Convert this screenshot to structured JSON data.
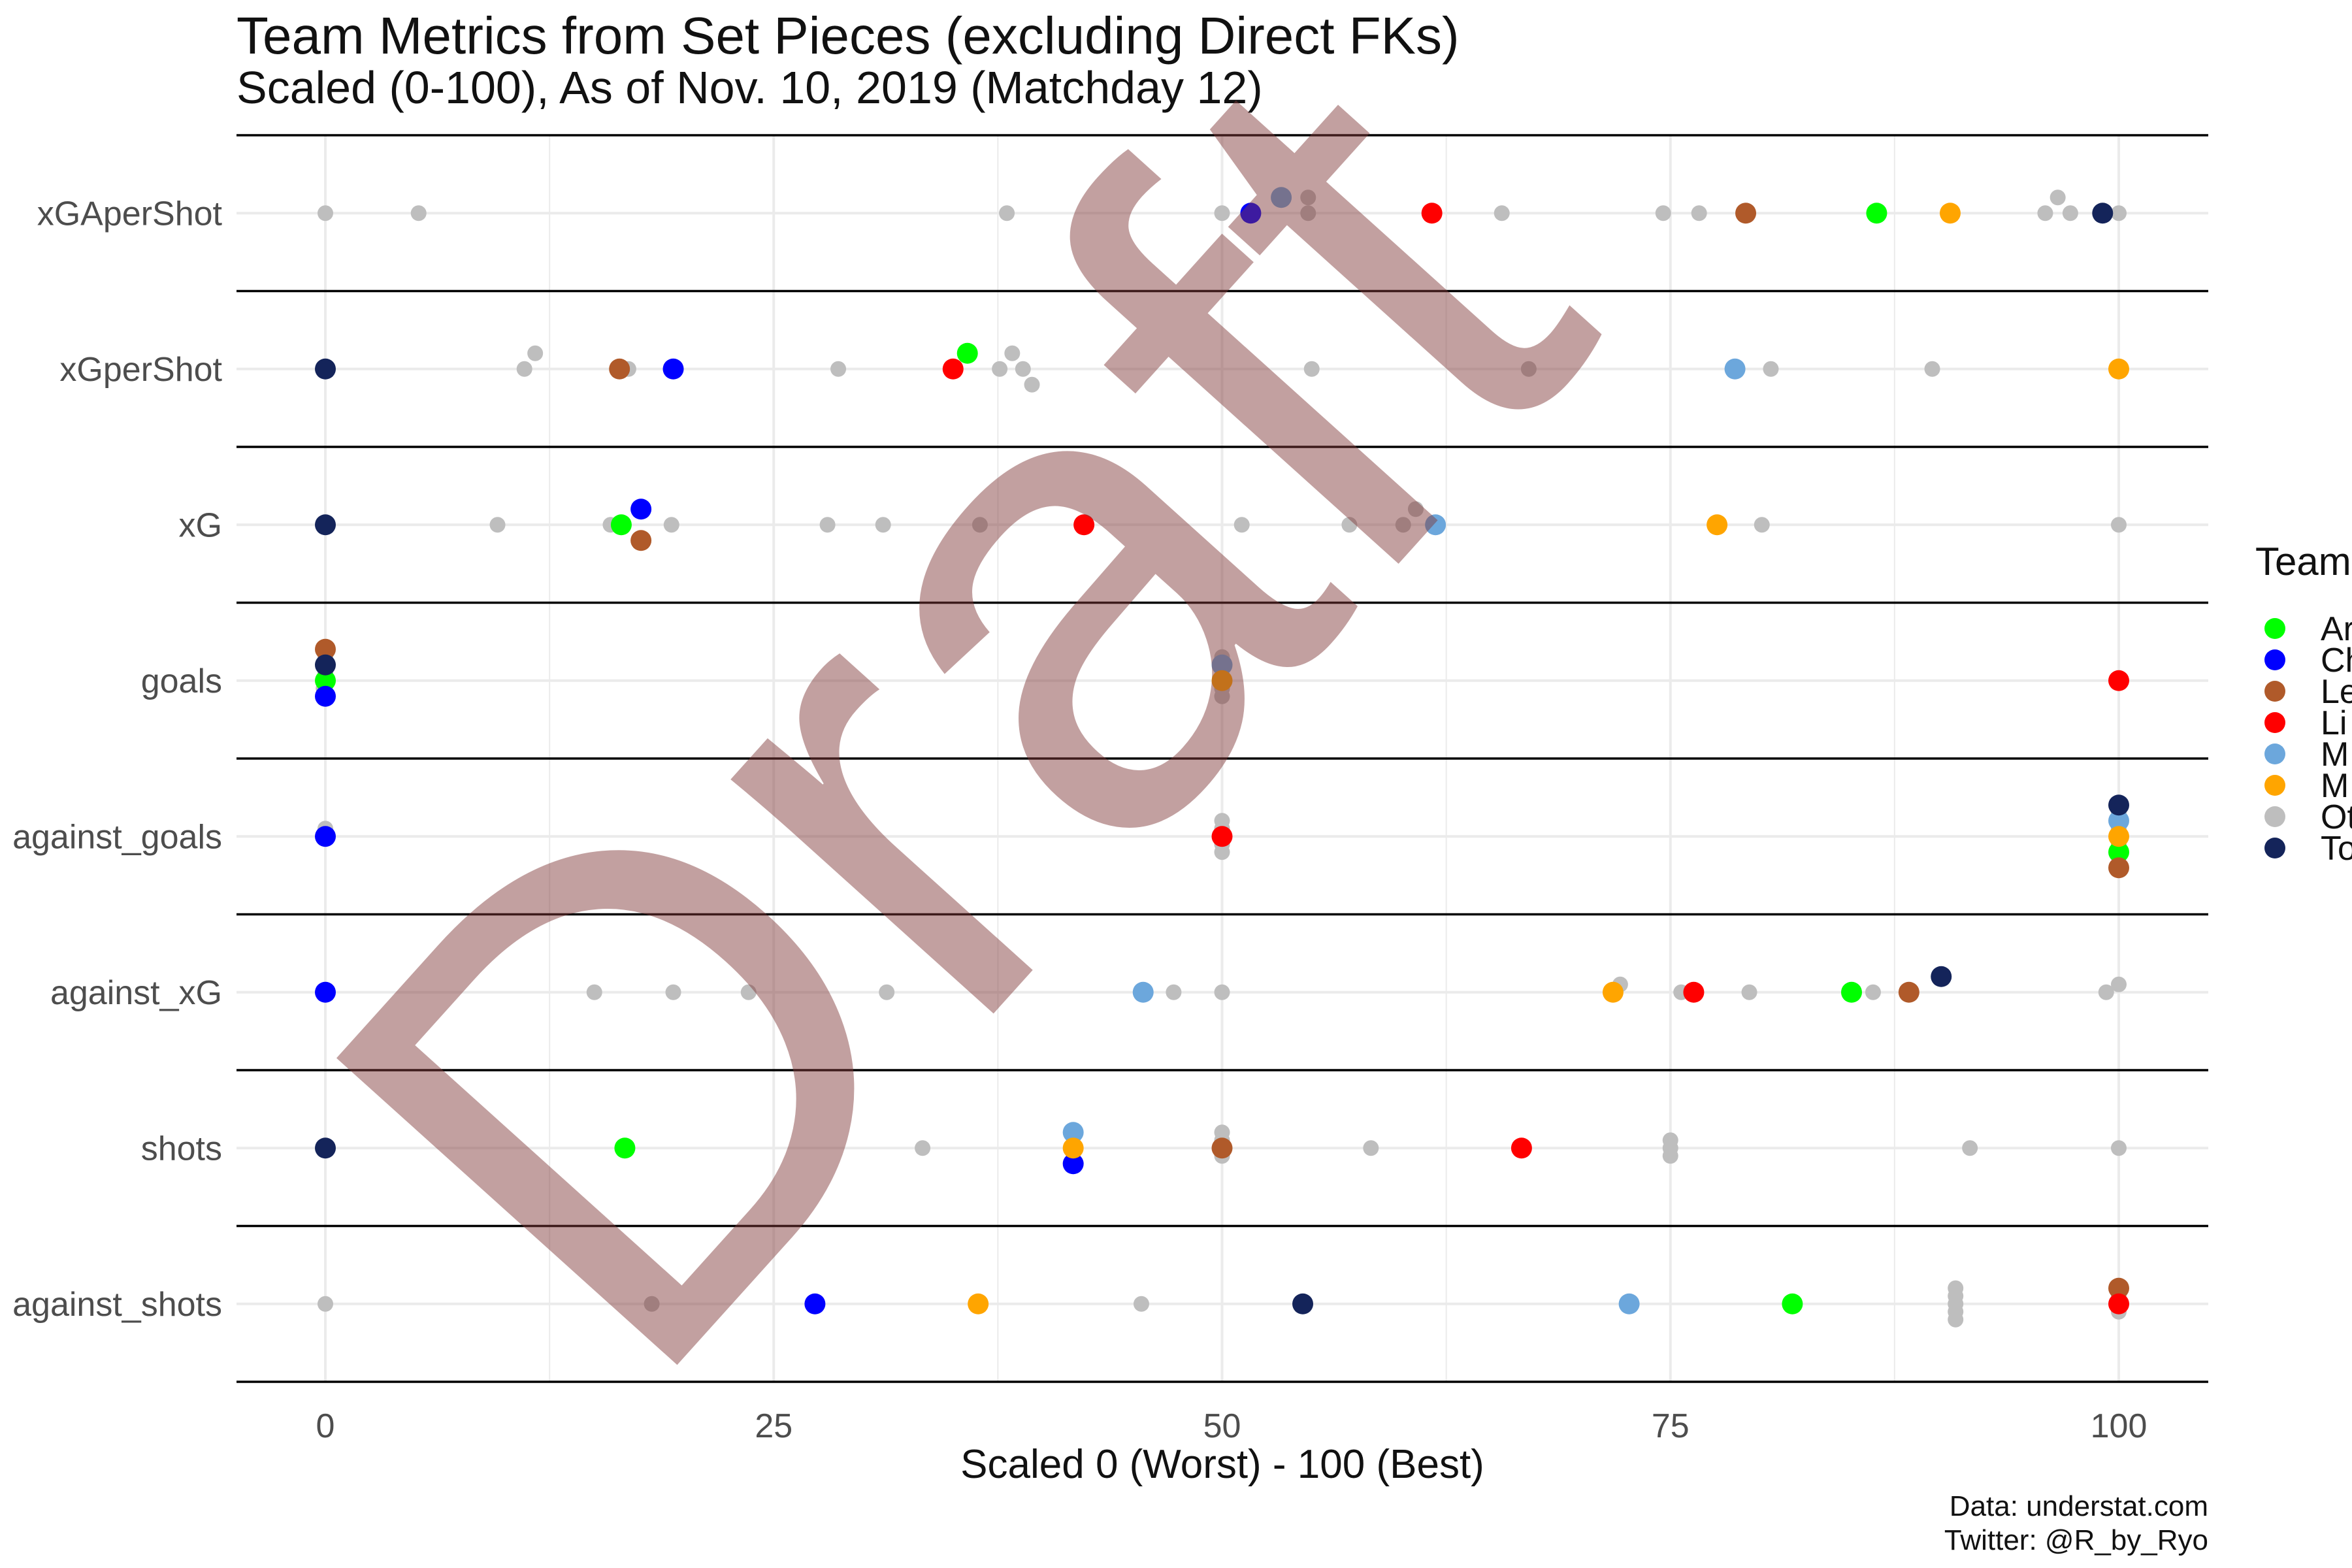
{
  "chart_data": {
    "type": "scatter",
    "title": "Team Metrics from Set Pieces (excluding Direct FKs)",
    "subtitle": "Scaled (0-100), As of Nov. 10, 2019 (Matchday 12)",
    "xlabel": "Scaled 0 (Worst) - 100 (Best)",
    "ylabel": "",
    "xlim": [
      -5,
      105
    ],
    "x_ticks": [
      "0",
      "25",
      "50",
      "75",
      "100"
    ],
    "grid": true,
    "categories": [
      "xGAperShot",
      "xGperShot",
      "xG",
      "goals",
      "against_goals",
      "against_xG",
      "shots",
      "against_shots"
    ],
    "legend": {
      "title": "Team",
      "placement": "right",
      "entries": [
        {
          "label": "Ar",
          "color": "#00FF00"
        },
        {
          "label": "Ch",
          "color": "#0000FF"
        },
        {
          "label": "Le",
          "color": "#B05A2A"
        },
        {
          "label": "Li",
          "color": "#FF0000"
        },
        {
          "label": "M",
          "color": "#6CA7DC"
        },
        {
          "label": "M",
          "color": "#FFA500"
        },
        {
          "label": "Ot",
          "color": "#BEBEBE"
        },
        {
          "label": "To",
          "color": "#14245A"
        }
      ]
    },
    "series": [
      {
        "color": "#00FF00",
        "points": [
          {
            "metric": "xGAperShot",
            "x": 86.5,
            "offset": 0
          },
          {
            "metric": "xGperShot",
            "x": 35.8,
            "offset": 1
          },
          {
            "metric": "xG",
            "x": 16.5,
            "offset": 0
          },
          {
            "metric": "goals",
            "x": 0,
            "offset": 0
          },
          {
            "metric": "against_goals",
            "x": 100,
            "offset": -1
          },
          {
            "metric": "against_xG",
            "x": 85.1,
            "offset": 0
          },
          {
            "metric": "shots",
            "x": 16.7,
            "offset": 0
          },
          {
            "metric": "against_shots",
            "x": 81.8,
            "offset": 0
          }
        ]
      },
      {
        "color": "#0000FF",
        "points": [
          {
            "metric": "xGAperShot",
            "x": 51.6,
            "offset": 0
          },
          {
            "metric": "xGperShot",
            "x": 19.4,
            "offset": 0
          },
          {
            "metric": "xG",
            "x": 17.6,
            "offset": 1
          },
          {
            "metric": "goals",
            "x": 0,
            "offset": -1
          },
          {
            "metric": "against_goals",
            "x": 0,
            "offset": 0
          },
          {
            "metric": "against_xG",
            "x": 0,
            "offset": 0
          },
          {
            "metric": "shots",
            "x": 41.7,
            "offset": -1
          },
          {
            "metric": "against_shots",
            "x": 27.3,
            "offset": 0
          }
        ]
      },
      {
        "color": "#B05A2A",
        "points": [
          {
            "metric": "xGAperShot",
            "x": 79.2,
            "offset": 0
          },
          {
            "metric": "xGperShot",
            "x": 16.4,
            "offset": 0
          },
          {
            "metric": "xG",
            "x": 17.6,
            "offset": -1
          },
          {
            "metric": "goals",
            "x": 0,
            "offset": 2
          },
          {
            "metric": "against_goals",
            "x": 100,
            "offset": -2
          },
          {
            "metric": "against_xG",
            "x": 88.3,
            "offset": 0
          },
          {
            "metric": "shots",
            "x": 50,
            "offset": 0
          },
          {
            "metric": "against_shots",
            "x": 100,
            "offset": 1
          }
        ]
      },
      {
        "color": "#FF0000",
        "points": [
          {
            "metric": "xGAperShot",
            "x": 61.7,
            "offset": 0
          },
          {
            "metric": "xGperShot",
            "x": 35.0,
            "offset": 0
          },
          {
            "metric": "xG",
            "x": 42.3,
            "offset": 0
          },
          {
            "metric": "goals",
            "x": 100,
            "offset": 0
          },
          {
            "metric": "against_goals",
            "x": 50,
            "offset": 0
          },
          {
            "metric": "against_xG",
            "x": 76.3,
            "offset": 0
          },
          {
            "metric": "shots",
            "x": 66.7,
            "offset": 0
          },
          {
            "metric": "against_shots",
            "x": 100,
            "offset": 0
          }
        ]
      },
      {
        "color": "#6CA7DC",
        "points": [
          {
            "metric": "xGAperShot",
            "x": 53.3,
            "offset": 1
          },
          {
            "metric": "xGperShot",
            "x": 78.6,
            "offset": 0
          },
          {
            "metric": "xG",
            "x": 61.9,
            "offset": 0
          },
          {
            "metric": "goals",
            "x": 50,
            "offset": 1
          },
          {
            "metric": "against_goals",
            "x": 100,
            "offset": 1
          },
          {
            "metric": "against_xG",
            "x": 45.6,
            "offset": 0
          },
          {
            "metric": "shots",
            "x": 41.7,
            "offset": 1
          },
          {
            "metric": "against_shots",
            "x": 72.7,
            "offset": 0
          }
        ]
      },
      {
        "color": "#FFA500",
        "points": [
          {
            "metric": "xGAperShot",
            "x": 90.6,
            "offset": 0
          },
          {
            "metric": "xGperShot",
            "x": 100,
            "offset": 0
          },
          {
            "metric": "xG",
            "x": 77.6,
            "offset": 0
          },
          {
            "metric": "goals",
            "x": 50,
            "offset": 0
          },
          {
            "metric": "against_goals",
            "x": 100,
            "offset": 0
          },
          {
            "metric": "against_xG",
            "x": 71.8,
            "offset": 0
          },
          {
            "metric": "shots",
            "x": 41.7,
            "offset": 0
          },
          {
            "metric": "against_shots",
            "x": 36.4,
            "offset": 0
          }
        ]
      },
      {
        "color": "#14245A",
        "points": [
          {
            "metric": "xGAperShot",
            "x": 99.1,
            "offset": 0
          },
          {
            "metric": "xGperShot",
            "x": 0,
            "offset": 0
          },
          {
            "metric": "xG",
            "x": 0,
            "offset": 0
          },
          {
            "metric": "goals",
            "x": 0,
            "offset": 1
          },
          {
            "metric": "against_goals",
            "x": 100,
            "offset": 2
          },
          {
            "metric": "against_xG",
            "x": 90.1,
            "offset": 1
          },
          {
            "metric": "shots",
            "x": 0,
            "offset": 0
          },
          {
            "metric": "against_shots",
            "x": 54.5,
            "offset": 0
          }
        ]
      },
      {
        "color": "#BEBEBE",
        "points": [
          {
            "metric": "xGAperShot",
            "x": 0,
            "offset": 0
          },
          {
            "metric": "xGAperShot",
            "x": 5.2,
            "offset": 0
          },
          {
            "metric": "xGAperShot",
            "x": 38.0,
            "offset": 0
          },
          {
            "metric": "xGAperShot",
            "x": 50,
            "offset": 0
          },
          {
            "metric": "xGAperShot",
            "x": 54.8,
            "offset": 1
          },
          {
            "metric": "xGAperShot",
            "x": 54.8,
            "offset": 0
          },
          {
            "metric": "xGAperShot",
            "x": 65.6,
            "offset": 0
          },
          {
            "metric": "xGAperShot",
            "x": 74.6,
            "offset": 0
          },
          {
            "metric": "xGAperShot",
            "x": 76.6,
            "offset": 0
          },
          {
            "metric": "xGAperShot",
            "x": 95.9,
            "offset": 0
          },
          {
            "metric": "xGAperShot",
            "x": 96.6,
            "offset": 1
          },
          {
            "metric": "xGAperShot",
            "x": 97.3,
            "offset": 0
          },
          {
            "metric": "xGAperShot",
            "x": 100,
            "offset": 0
          },
          {
            "metric": "xGperShot",
            "x": 11.1,
            "offset": 0
          },
          {
            "metric": "xGperShot",
            "x": 11.7,
            "offset": 1
          },
          {
            "metric": "xGperShot",
            "x": 16.9,
            "offset": 0
          },
          {
            "metric": "xGperShot",
            "x": 28.6,
            "offset": 0
          },
          {
            "metric": "xGperShot",
            "x": 37.6,
            "offset": 0
          },
          {
            "metric": "xGperShot",
            "x": 38.3,
            "offset": 1
          },
          {
            "metric": "xGperShot",
            "x": 38.9,
            "offset": 0
          },
          {
            "metric": "xGperShot",
            "x": 39.4,
            "offset": -1
          },
          {
            "metric": "xGperShot",
            "x": 55.0,
            "offset": 0
          },
          {
            "metric": "xGperShot",
            "x": 67.1,
            "offset": 0
          },
          {
            "metric": "xGperShot",
            "x": 80.6,
            "offset": 0
          },
          {
            "metric": "xGperShot",
            "x": 89.6,
            "offset": 0
          },
          {
            "metric": "xG",
            "x": 9.6,
            "offset": 0
          },
          {
            "metric": "xG",
            "x": 15.9,
            "offset": 0
          },
          {
            "metric": "xG",
            "x": 19.3,
            "offset": 0
          },
          {
            "metric": "xG",
            "x": 28.0,
            "offset": 0
          },
          {
            "metric": "xG",
            "x": 31.1,
            "offset": 0
          },
          {
            "metric": "xG",
            "x": 36.5,
            "offset": 0
          },
          {
            "metric": "xG",
            "x": 51.1,
            "offset": 0
          },
          {
            "metric": "xG",
            "x": 57.1,
            "offset": 0
          },
          {
            "metric": "xG",
            "x": 60.1,
            "offset": 0
          },
          {
            "metric": "xG",
            "x": 60.8,
            "offset": 1
          },
          {
            "metric": "xG",
            "x": 80.1,
            "offset": 0
          },
          {
            "metric": "xG",
            "x": 100,
            "offset": 0
          },
          {
            "metric": "goals",
            "x": 0,
            "offset": 1.5
          },
          {
            "metric": "goals",
            "x": 0,
            "offset": 0.5
          },
          {
            "metric": "goals",
            "x": -0.1,
            "offset": -0.5
          },
          {
            "metric": "goals",
            "x": 50,
            "offset": 1.5
          },
          {
            "metric": "goals",
            "x": 50,
            "offset": -0.5
          },
          {
            "metric": "goals",
            "x": 50,
            "offset": -1
          },
          {
            "metric": "against_goals",
            "x": 0,
            "offset": 0.5
          },
          {
            "metric": "against_goals",
            "x": 50,
            "offset": 1
          },
          {
            "metric": "against_goals",
            "x": 50,
            "offset": 0.5
          },
          {
            "metric": "against_goals",
            "x": 50,
            "offset": -0.5
          },
          {
            "metric": "against_goals",
            "x": 50,
            "offset": -1
          },
          {
            "metric": "against_goals",
            "x": 100,
            "offset": 1.5
          },
          {
            "metric": "against_goals",
            "x": 100,
            "offset": 0.5
          },
          {
            "metric": "against_goals",
            "x": 100,
            "offset": -0.5
          },
          {
            "metric": "against_xG",
            "x": 15.0,
            "offset": 0
          },
          {
            "metric": "against_xG",
            "x": 19.4,
            "offset": 0
          },
          {
            "metric": "against_xG",
            "x": 23.6,
            "offset": 0
          },
          {
            "metric": "against_xG",
            "x": 31.3,
            "offset": 0
          },
          {
            "metric": "against_xG",
            "x": 47.3,
            "offset": 0
          },
          {
            "metric": "against_xG",
            "x": 50,
            "offset": 0
          },
          {
            "metric": "against_xG",
            "x": 72.2,
            "offset": 0.5
          },
          {
            "metric": "against_xG",
            "x": 75.6,
            "offset": 0
          },
          {
            "metric": "against_xG",
            "x": 79.4,
            "offset": 0
          },
          {
            "metric": "against_xG",
            "x": 86.3,
            "offset": 0
          },
          {
            "metric": "against_xG",
            "x": 99.3,
            "offset": 0
          },
          {
            "metric": "against_xG",
            "x": 100,
            "offset": 0.5
          },
          {
            "metric": "shots",
            "x": 33.3,
            "offset": 0
          },
          {
            "metric": "shots",
            "x": 50,
            "offset": 1
          },
          {
            "metric": "shots",
            "x": 50,
            "offset": 0.5
          },
          {
            "metric": "shots",
            "x": 50,
            "offset": -0.5
          },
          {
            "metric": "shots",
            "x": 58.3,
            "offset": 0
          },
          {
            "metric": "shots",
            "x": 75,
            "offset": 0.5
          },
          {
            "metric": "shots",
            "x": 75,
            "offset": 0
          },
          {
            "metric": "shots",
            "x": 75,
            "offset": -0.5
          },
          {
            "metric": "shots",
            "x": 91.7,
            "offset": 0
          },
          {
            "metric": "shots",
            "x": 100,
            "offset": 0
          },
          {
            "metric": "against_shots",
            "x": 0,
            "offset": 0
          },
          {
            "metric": "against_shots",
            "x": 18.2,
            "offset": 0
          },
          {
            "metric": "against_shots",
            "x": 45.5,
            "offset": 0
          },
          {
            "metric": "against_shots",
            "x": 90.9,
            "offset": 1
          },
          {
            "metric": "against_shots",
            "x": 90.9,
            "offset": 0.5
          },
          {
            "metric": "against_shots",
            "x": 90.9,
            "offset": 0
          },
          {
            "metric": "against_shots",
            "x": 90.9,
            "offset": -0.5
          },
          {
            "metric": "against_shots",
            "x": 90.9,
            "offset": -1
          },
          {
            "metric": "against_shots",
            "x": 100,
            "offset": 0.5
          },
          {
            "metric": "against_shots",
            "x": 100,
            "offset": -0.5
          }
        ]
      }
    ],
    "caption": [
      "Data: understat.com",
      "Twitter: @R_by_Ryo"
    ],
    "watermark": "Draft"
  }
}
